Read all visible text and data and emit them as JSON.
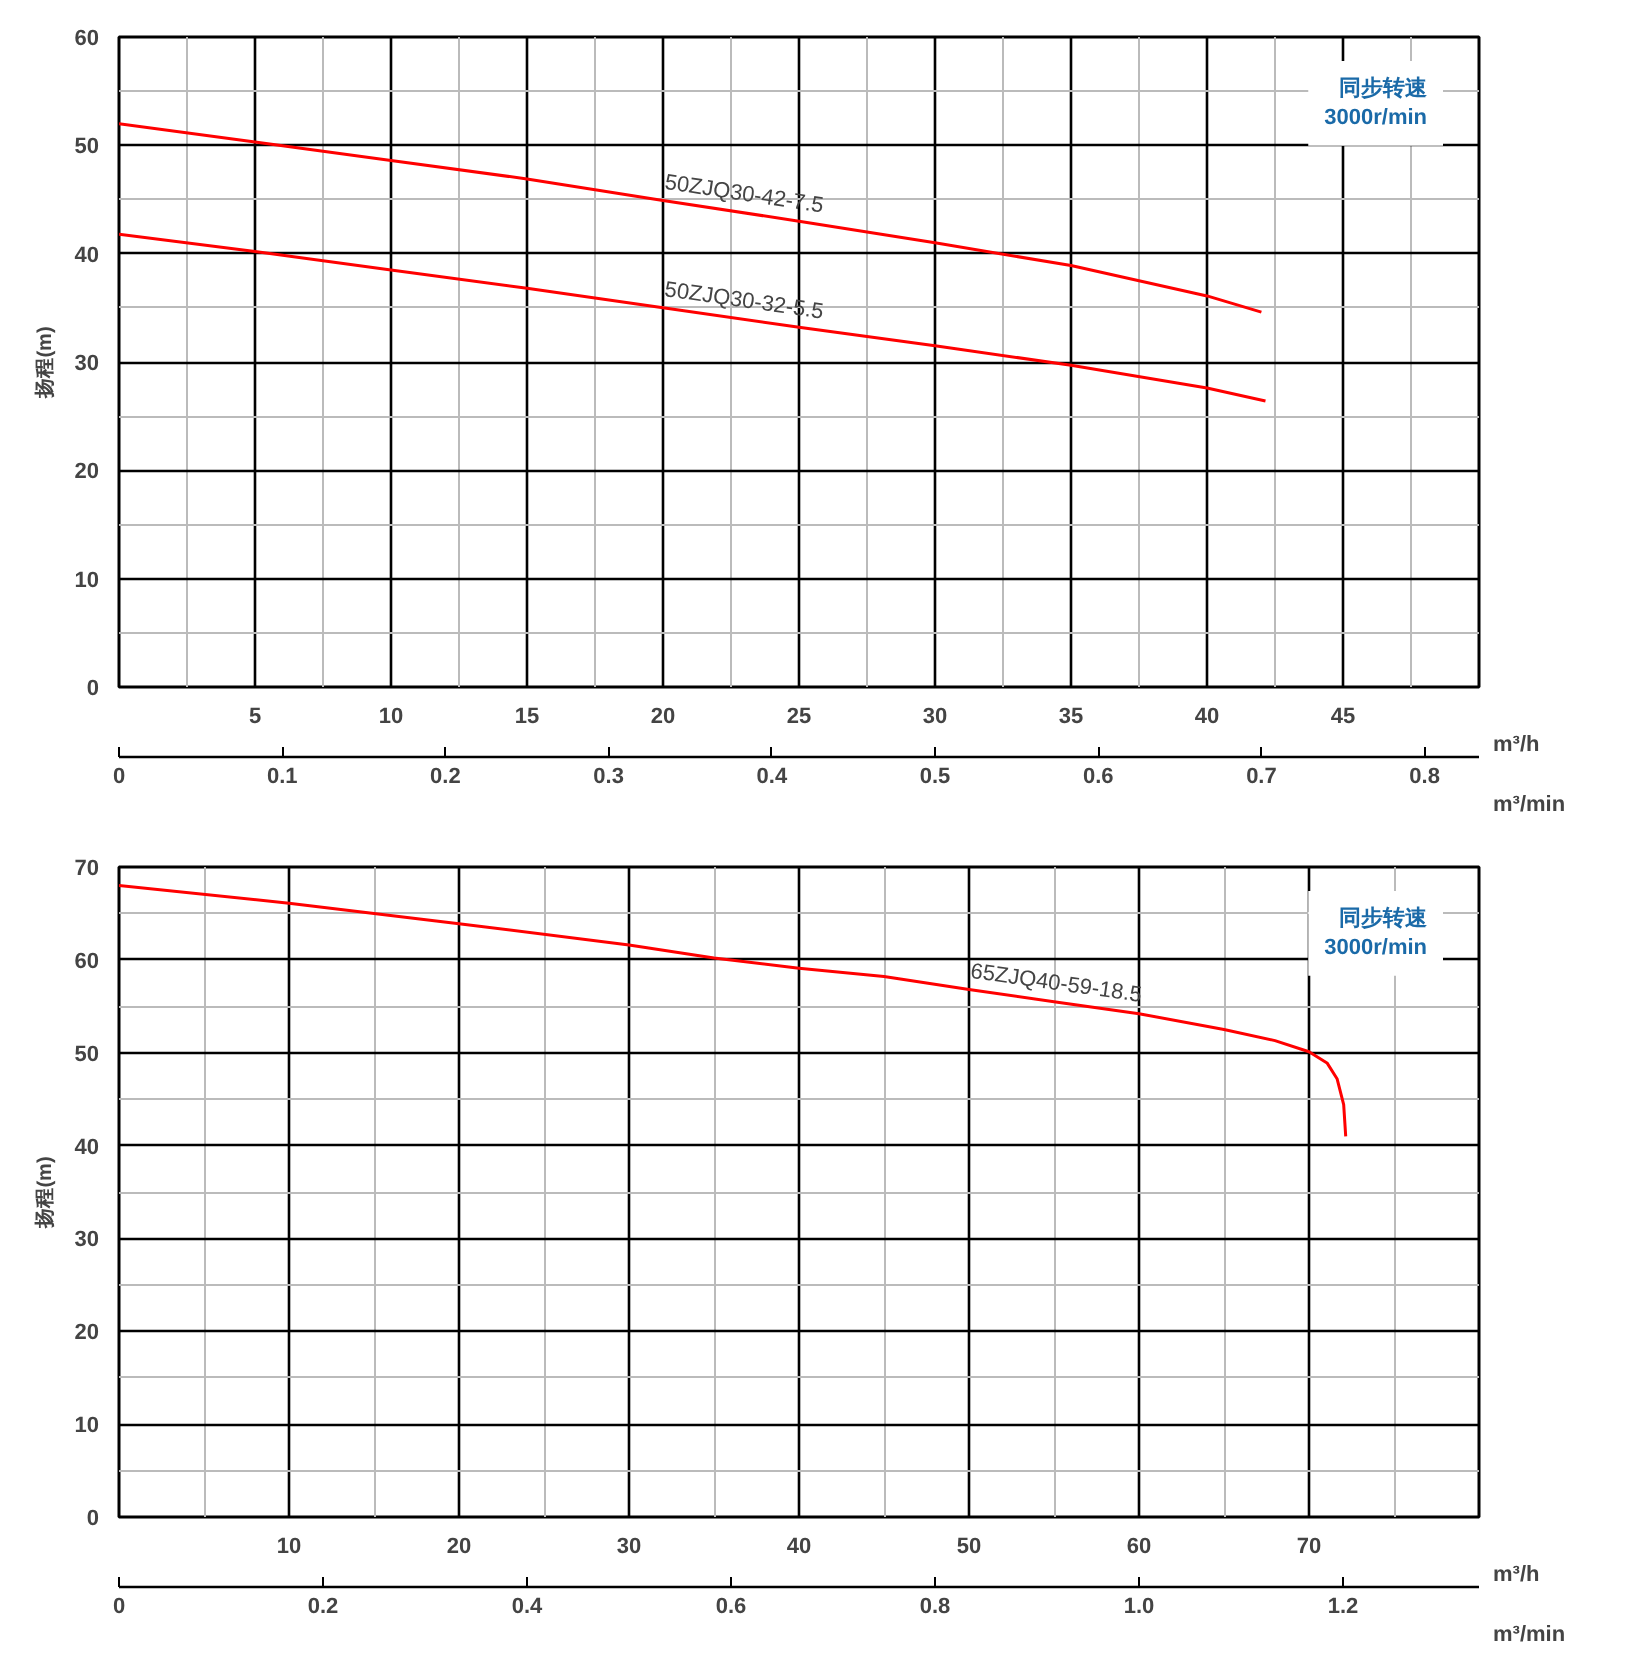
{
  "chart_data": [
    {
      "type": "line",
      "ylabel": "扬程(m)",
      "xlabel": "m³/h",
      "x2label": "m³/min",
      "xlim": [
        0,
        50
      ],
      "ylim": [
        0,
        60
      ],
      "x2lim": [
        0,
        0.8333
      ],
      "xticks": [
        5,
        10,
        15,
        20,
        25,
        30,
        35,
        40,
        45
      ],
      "yticks": [
        0,
        10,
        20,
        30,
        40,
        50,
        60
      ],
      "x2ticks": [
        0,
        0.1,
        0.2,
        0.3,
        0.4,
        0.5,
        0.6,
        0.7,
        0.8
      ],
      "grid": true,
      "line_style": "solid",
      "marker": "none",
      "series": [
        {
          "name": "50ZJQ30-42-7.5",
          "color": "#ff0000",
          "x": [
            0,
            5,
            10,
            15,
            20,
            25,
            30,
            35,
            40,
            42
          ],
          "values": [
            52,
            50.3,
            48.6,
            46.9,
            44.9,
            43.0,
            41.0,
            38.9,
            36.1,
            34.6
          ]
        },
        {
          "name": "50ZJQ30-32-5.5",
          "color": "#ff0000",
          "x": [
            0,
            5,
            10,
            15,
            20,
            25,
            30,
            35,
            40,
            42.15
          ],
          "values": [
            41.8,
            40.2,
            38.5,
            36.8,
            35.0,
            33.2,
            31.5,
            29.7,
            27.6,
            26.4
          ]
        }
      ],
      "annotations": [
        "同步转速\n3000r/min"
      ]
    },
    {
      "type": "line",
      "ylabel": "扬程(m)",
      "xlabel": "m³/h",
      "x2label": "m³/min",
      "xlim": [
        0,
        80
      ],
      "ylim": [
        0,
        70
      ],
      "x2lim": [
        0,
        1.3333
      ],
      "xticks": [
        10,
        20,
        30,
        40,
        50,
        60,
        70
      ],
      "yticks": [
        0,
        10,
        20,
        30,
        40,
        50,
        60,
        70
      ],
      "x2ticks": [
        0,
        0.2,
        0.4,
        0.6,
        0.8,
        {
          "value": 1,
          "label": "1.0"
        },
        1.2
      ],
      "grid": true,
      "line_style": "solid",
      "marker": "none",
      "series": [
        {
          "name": "65ZJQ40-59-18.5",
          "color": "#ff0000",
          "x": [
            0,
            10,
            20,
            30,
            35,
            40,
            45,
            50,
            55,
            60,
            65,
            68,
            70,
            71.06,
            71.65,
            72.04,
            72.16
          ],
          "values": [
            68,
            66.1,
            63.9,
            61.6,
            60.2,
            59.1,
            58.2,
            56.8,
            55.5,
            54.2,
            52.5,
            51.3,
            50.1,
            48.9,
            47.2,
            44.4,
            41.0
          ]
        }
      ],
      "annotations": [
        "同步转速\n3000r/min"
      ]
    }
  ]
}
